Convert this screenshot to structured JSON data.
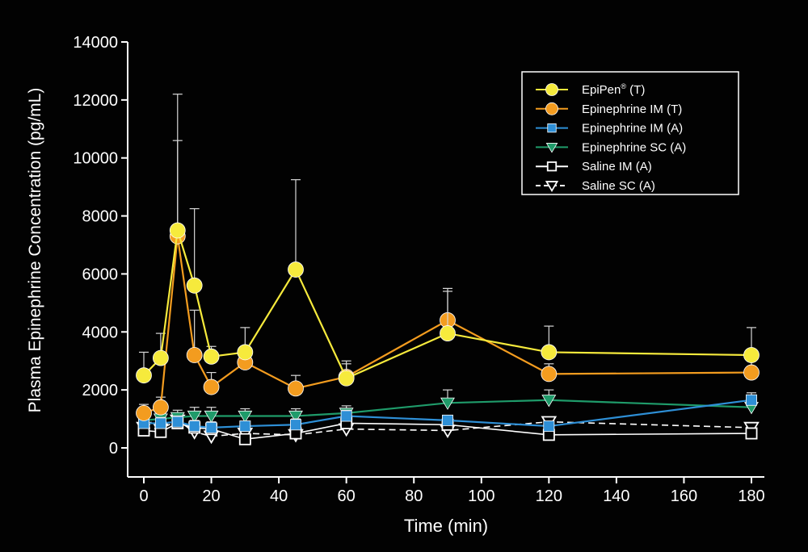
{
  "chart_data": {
    "type": "line",
    "xlabel": "Time (min)",
    "ylabel": "Plasma Epinephrine Concentration (pg/mL)",
    "xlim": [
      -2,
      184
    ],
    "ylim": [
      0,
      14000
    ],
    "x_ticks": [
      0,
      20,
      40,
      60,
      80,
      100,
      120,
      140,
      160,
      180
    ],
    "y_ticks": [
      0,
      2000,
      4000,
      6000,
      8000,
      10000,
      12000,
      14000
    ],
    "grid": false,
    "legend_position": "top-right",
    "series": [
      {
        "name": "EpiPen",
        "name_sup": "®",
        "name_suffix": "(T)",
        "color": "#f6ea3c",
        "line_style": "solid",
        "marker": "circle",
        "marker_fill": "filled",
        "x": [
          0,
          5,
          10,
          15,
          20,
          30,
          45,
          60,
          90,
          120,
          180
        ],
        "y": [
          2500,
          3100,
          7500,
          5600,
          3150,
          3300,
          6150,
          2400,
          3950,
          3300,
          3200
        ],
        "error_upper": [
          3300,
          3950,
          12200,
          8250,
          3500,
          4150,
          9250,
          3000,
          5500,
          4200,
          4150
        ]
      },
      {
        "name": "Epinephrine IM",
        "name_suffix": "(T)",
        "color": "#f39c1f",
        "line_style": "solid",
        "marker": "circle",
        "marker_fill": "filled",
        "x": [
          0,
          5,
          10,
          15,
          20,
          30,
          45,
          60,
          90,
          120,
          180
        ],
        "y": [
          1200,
          1400,
          7300,
          3200,
          2100,
          2950,
          2050,
          2450,
          4400,
          2550,
          2600
        ],
        "error_upper": [
          1500,
          1750,
          10600,
          4750,
          2600,
          3500,
          2500,
          2900,
          5400,
          2900,
          3100
        ]
      },
      {
        "name": "Epinephrine IM",
        "name_suffix": "(A)",
        "color": "#2e8fd6",
        "line_style": "solid",
        "marker": "square",
        "marker_fill": "filled",
        "x": [
          0,
          5,
          10,
          15,
          20,
          30,
          45,
          60,
          90,
          120,
          180
        ],
        "y": [
          850,
          850,
          900,
          750,
          700,
          750,
          800,
          1100,
          950,
          750,
          1650
        ],
        "error_upper": [
          1050,
          1050,
          1100,
          950,
          900,
          900,
          1000,
          1300,
          1100,
          900,
          1900
        ]
      },
      {
        "name": "Epinephrine SC",
        "name_suffix": "(A)",
        "color": "#1f9b6a",
        "line_style": "solid",
        "marker": "triangle-down",
        "marker_fill": "filled",
        "x": [
          0,
          5,
          10,
          15,
          20,
          30,
          45,
          60,
          90,
          120,
          180
        ],
        "y": [
          950,
          1000,
          1050,
          1100,
          1100,
          1100,
          1100,
          1200,
          1550,
          1650,
          1400
        ],
        "error_upper": [
          1200,
          1250,
          1300,
          1400,
          1400,
          1350,
          1350,
          1450,
          2000,
          2000,
          1650
        ]
      },
      {
        "name": "Saline IM",
        "name_suffix": "(A)",
        "color": "#ffffff",
        "line_style": "solid",
        "marker": "square",
        "marker_fill": "open",
        "x": [
          0,
          5,
          10,
          15,
          20,
          30,
          45,
          60,
          90,
          120,
          180
        ],
        "y": [
          600,
          550,
          850,
          700,
          650,
          300,
          500,
          850,
          800,
          450,
          500
        ],
        "error_upper": [
          750,
          700,
          1000,
          850,
          800,
          450,
          650,
          1000,
          950,
          600,
          650
        ]
      },
      {
        "name": "Saline SC",
        "name_suffix": "(A)",
        "color": "#ffffff",
        "line_style": "dashed",
        "marker": "triangle-down",
        "marker_fill": "open",
        "x": [
          0,
          5,
          10,
          15,
          20,
          30,
          45,
          60,
          90,
          120,
          180
        ],
        "y": [
          700,
          650,
          950,
          550,
          400,
          500,
          450,
          650,
          600,
          900,
          700
        ],
        "error_upper": [
          850,
          800,
          1100,
          700,
          550,
          650,
          600,
          800,
          750,
          1050,
          850
        ]
      }
    ]
  }
}
